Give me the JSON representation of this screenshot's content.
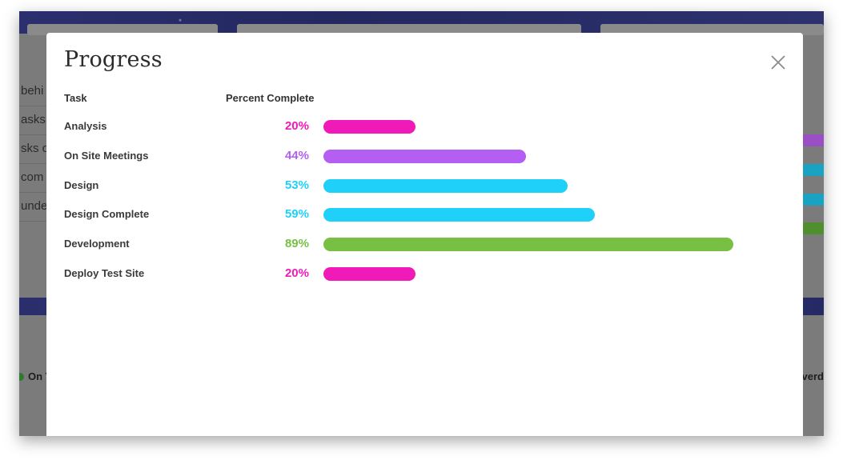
{
  "modal": {
    "title": "Progress",
    "close_icon": "close-icon",
    "columns": {
      "task": "Task",
      "percent": "Percent Complete"
    },
    "rows": [
      {
        "task": "Analysis",
        "percent_label": "20%",
        "percent": 20,
        "color": "#f01ab9"
      },
      {
        "task": "On Site Meetings",
        "percent_label": "44%",
        "percent": 44,
        "color": "#b45ef4"
      },
      {
        "task": "Design",
        "percent_label": "53%",
        "percent": 53,
        "color": "#1fd1f9"
      },
      {
        "task": "Design Complete",
        "percent_label": "59%",
        "percent": 59,
        "color": "#1fd1f9"
      },
      {
        "task": "Development",
        "percent_label": "89%",
        "percent": 89,
        "color": "#77c043"
      },
      {
        "task": "Deploy Test Site",
        "percent_label": "20%",
        "percent": 20,
        "color": "#f01ab9"
      }
    ]
  },
  "background": {
    "row_fragments": [
      "behi",
      "asks",
      "sks o",
      "com",
      "unde"
    ],
    "lower_left_label": "On T",
    "lower_right_label": "verd",
    "side_bar_colors": [
      "#9a4fc4",
      "#1aa2c2",
      "#1aa2c2",
      "#4f8f2e"
    ]
  }
}
